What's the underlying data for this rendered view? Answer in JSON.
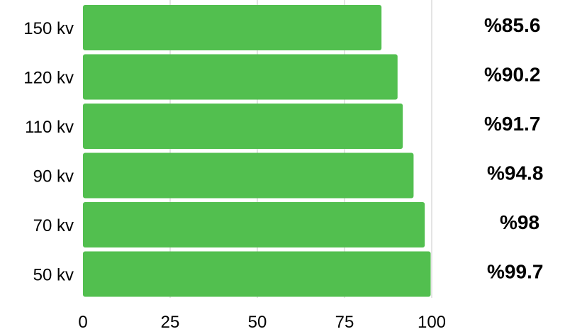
{
  "chart_data": {
    "type": "bar",
    "orientation": "horizontal",
    "title": "",
    "xlabel": "",
    "ylabel": "",
    "categories": [
      "150 kv",
      "120 kv",
      "110 kv",
      "90 kv",
      "70 kv",
      "50 kv"
    ],
    "values": [
      85.6,
      90.2,
      91.7,
      94.8,
      98,
      99.7
    ],
    "data_labels": [
      "%85.6",
      "%90.2",
      "%91.7",
      "%94.8",
      "%98",
      "%99.7"
    ],
    "xlim": [
      0,
      100
    ],
    "x_ticks": [
      0,
      25,
      50,
      75,
      100
    ],
    "x_tick_labels": [
      "0",
      "25",
      "50",
      "75",
      "100"
    ],
    "grid": "vertical",
    "legend": "none",
    "bar_color": "#52bf4f",
    "grid_color": "#c8c8c8"
  }
}
